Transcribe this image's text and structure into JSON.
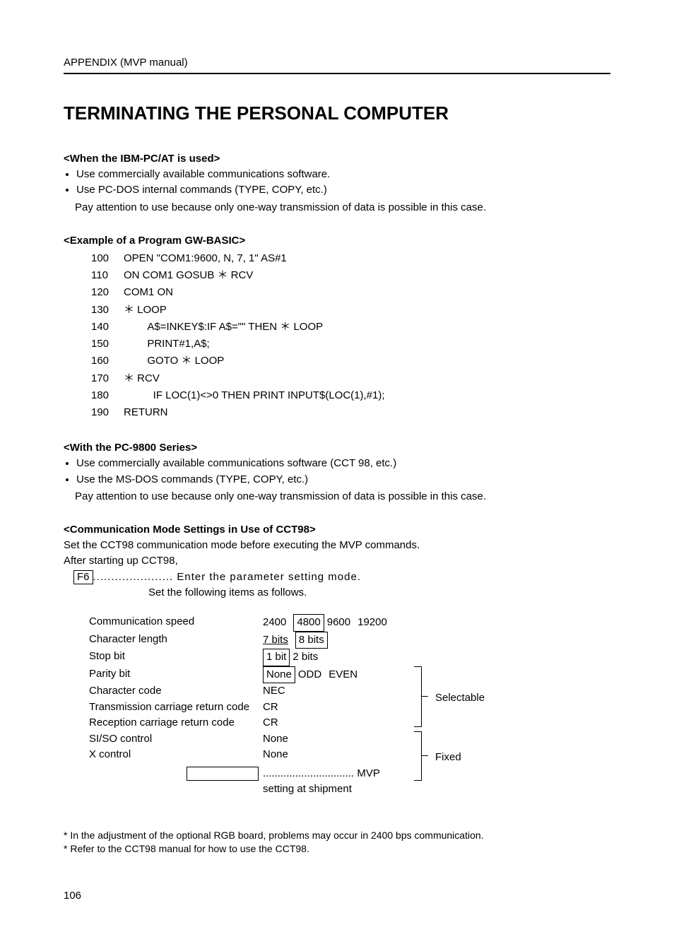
{
  "header": "APPENDIX (MVP manual)",
  "title": "TERMINATING THE PERSONAL COMPUTER",
  "section_ibm": {
    "heading": "<When the IBM-PC/AT is used>",
    "bullets": [
      "Use commercially available communications software.",
      "Use PC-DOS internal commands (TYPE, COPY, etc.)"
    ],
    "note": "Pay attention to use because only one-way transmission of data is possible in this case."
  },
  "section_gwbasic": {
    "heading": "<Example of a Program GW-BASIC>",
    "lines": [
      {
        "n": "100",
        "t": "OPEN \"COM1:9600, N, 7, 1\" AS#1"
      },
      {
        "n": "110",
        "t": "ON COM1 GOSUB ＊ RCV"
      },
      {
        "n": "120",
        "t": "COM1 ON"
      },
      {
        "n": "130",
        "t": "＊ LOOP"
      },
      {
        "n": "140",
        "t": "        A$=INKEY$:IF A$=\"\" THEN ＊ LOOP"
      },
      {
        "n": "150",
        "t": "        PRINT#1,A$;"
      },
      {
        "n": "160",
        "t": "        GOTO ＊ LOOP"
      },
      {
        "n": "170",
        "t": "＊ RCV"
      },
      {
        "n": "180",
        "t": "          IF LOC(1)<>0 THEN PRINT INPUT$(LOC(1),#1);"
      },
      {
        "n": "190",
        "t": "RETURN"
      }
    ]
  },
  "section_pc9800": {
    "heading": "<With the PC-9800 Series>",
    "bullets": [
      "Use commercially available communications software (CCT 98, etc.)",
      "Use the MS-DOS commands (TYPE, COPY, etc.)"
    ],
    "note": "Pay attention to use because only one-way transmission of data is possible in this case."
  },
  "section_cct98": {
    "heading": "<Communication Mode Settings in Use of CCT98>",
    "p1": "Set the CCT98 communication mode before executing the MVP commands.",
    "p2": "After starting up CCT98,",
    "key": "F6",
    "key_text": "...................... Enter the parameter setting mode.",
    "key_sub": "Set the following items as follows.",
    "settings": [
      {
        "label": "Communication speed",
        "values": [
          {
            "t": "2400",
            "box": false
          },
          {
            "t": "4800",
            "box": true
          },
          {
            "t": "9600",
            "box": false
          },
          {
            "t": "19200",
            "box": false
          }
        ],
        "group": "sel"
      },
      {
        "label": "Character length",
        "values": [
          {
            "t": "7 bits",
            "box": false,
            "underline": true
          },
          {
            "t": "8 bits",
            "box": true
          }
        ],
        "group": "sel"
      },
      {
        "label": "Stop bit",
        "values": [
          {
            "t": "1 bit",
            "box": true
          },
          {
            "t": "2 bits",
            "box": false
          }
        ],
        "group": "sel"
      },
      {
        "label": "Parity bit",
        "values": [
          {
            "t": "None",
            "box": true
          },
          {
            "t": "ODD",
            "box": false
          },
          {
            "t": "EVEN",
            "box": false
          }
        ],
        "group": "sel"
      },
      {
        "label": "Character code",
        "values": [
          {
            "t": "NEC",
            "box": false
          }
        ],
        "group": "sel"
      },
      {
        "label": "Transmission carriage return code",
        "values": [
          {
            "t": "CR",
            "box": false
          }
        ],
        "group": "sel"
      },
      {
        "label": "Reception carriage return code",
        "values": [
          {
            "t": "CR",
            "box": false
          }
        ],
        "group": "sel"
      },
      {
        "label": "SI/SO control",
        "values": [
          {
            "t": "None",
            "box": false
          }
        ],
        "group": "fix"
      },
      {
        "label": "X control",
        "values": [
          {
            "t": "None",
            "box": false
          }
        ],
        "group": "fix"
      }
    ],
    "shipment_label": "............................... MVP setting at shipment",
    "anno_selectable": "Selectable",
    "anno_fixed": "Fixed"
  },
  "footnotes": [
    "* In the adjustment of the optional RGB board, problems may occur in 2400 bps communication.",
    "* Refer to the CCT98 manual for how to use the CCT98."
  ],
  "page_number": "106"
}
